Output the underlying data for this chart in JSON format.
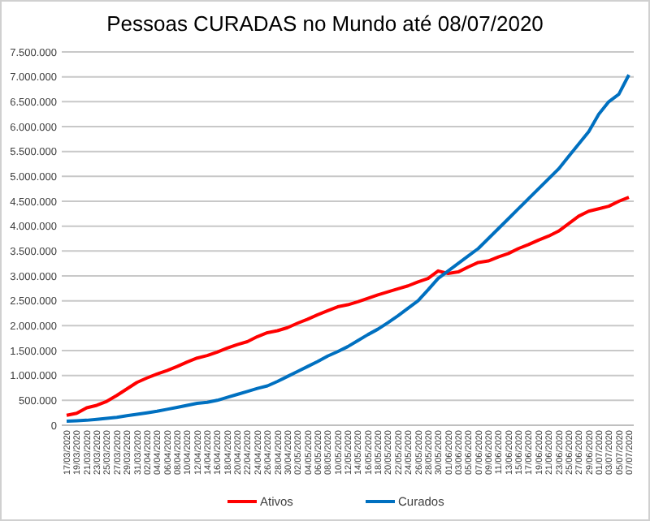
{
  "chart_data": {
    "type": "line",
    "title": "Pessoas CURADAS no Mundo até 08/07/2020",
    "categories": [
      "17/03/2020",
      "19/03/2020",
      "21/03/2020",
      "23/03/2020",
      "25/03/2020",
      "27/03/2020",
      "29/03/2020",
      "31/03/2020",
      "02/04/2020",
      "04/04/2020",
      "06/04/2020",
      "08/04/2020",
      "10/04/2020",
      "12/04/2020",
      "14/04/2020",
      "16/04/2020",
      "18/04/2020",
      "20/04/2020",
      "22/04/2020",
      "24/04/2020",
      "26/04/2020",
      "28/04/2020",
      "30/04/2020",
      "02/05/2020",
      "04/05/2020",
      "06/05/2020",
      "08/05/2020",
      "10/05/2020",
      "12/05/2020",
      "14/05/2020",
      "16/05/2020",
      "18/05/2020",
      "20/05/2020",
      "22/05/2020",
      "24/05/2020",
      "26/05/2020",
      "28/05/2020",
      "30/05/2020",
      "01/06/2020",
      "03/06/2020",
      "05/06/2020",
      "07/06/2020",
      "09/06/2020",
      "11/06/2020",
      "13/06/2020",
      "15/06/2020",
      "17/06/2020",
      "19/06/2020",
      "21/06/2020",
      "23/06/2020",
      "25/06/2020",
      "27/06/2020",
      "29/06/2020",
      "01/07/2020",
      "03/07/2020",
      "05/07/2020",
      "07/07/2020"
    ],
    "series": [
      {
        "name": "Ativos",
        "color": "#ff0000",
        "values": [
          200000,
          240000,
          350000,
          400000,
          480000,
          600000,
          730000,
          860000,
          950000,
          1030000,
          1100000,
          1180000,
          1270000,
          1350000,
          1400000,
          1470000,
          1550000,
          1620000,
          1680000,
          1780000,
          1860000,
          1900000,
          1960000,
          2050000,
          2130000,
          2220000,
          2300000,
          2380000,
          2420000,
          2480000,
          2550000,
          2620000,
          2680000,
          2740000,
          2800000,
          2880000,
          2950000,
          3100000,
          3050000,
          3080000,
          3180000,
          3270000,
          3300000,
          3380000,
          3450000,
          3550000,
          3630000,
          3720000,
          3800000,
          3900000,
          4050000,
          4200000,
          4300000,
          4350000,
          4400000,
          4500000,
          4580000
        ]
      },
      {
        "name": "Curados",
        "color": "#0070c0",
        "values": [
          80000,
          90000,
          100000,
          120000,
          140000,
          160000,
          190000,
          220000,
          250000,
          280000,
          320000,
          360000,
          400000,
          440000,
          460000,
          500000,
          560000,
          620000,
          680000,
          740000,
          790000,
          880000,
          980000,
          1080000,
          1180000,
          1280000,
          1390000,
          1480000,
          1580000,
          1700000,
          1820000,
          1930000,
          2060000,
          2200000,
          2350000,
          2500000,
          2720000,
          2950000,
          3100000,
          3250000,
          3400000,
          3550000,
          3750000,
          3950000,
          4150000,
          4350000,
          4550000,
          4750000,
          4950000,
          5150000,
          5400000,
          5650000,
          5900000,
          6250000,
          6500000,
          6650000,
          7040000
        ]
      }
    ],
    "ylim": [
      0,
      7500000
    ],
    "yticks": [
      0,
      {
        "value": 500000,
        "label": "500.000"
      },
      {
        "value": 1000000,
        "label": "1.000.000"
      },
      {
        "value": 1500000,
        "label": "1.500.000"
      },
      {
        "value": 2000000,
        "label": "2.000.000"
      },
      {
        "value": 2500000,
        "label": "2.500.000"
      },
      {
        "value": 3000000,
        "label": "3.000.000"
      },
      {
        "value": 3500000,
        "label": "3.500.000"
      },
      {
        "value": 4000000,
        "label": "4.000.000"
      },
      {
        "value": 4500000,
        "label": "4.500.000"
      },
      {
        "value": 5000000,
        "label": "5.000.000"
      },
      {
        "value": 5500000,
        "label": "5.500.000"
      },
      {
        "value": 6000000,
        "label": "6.000.000"
      },
      {
        "value": 6500000,
        "label": "6.500.000"
      },
      {
        "value": 7000000,
        "label": "7.000.000"
      },
      {
        "value": 7500000,
        "label": "7.500.000"
      }
    ],
    "grid": "y",
    "legend": "bottom",
    "marker": "none",
    "line_style": "solid"
  }
}
